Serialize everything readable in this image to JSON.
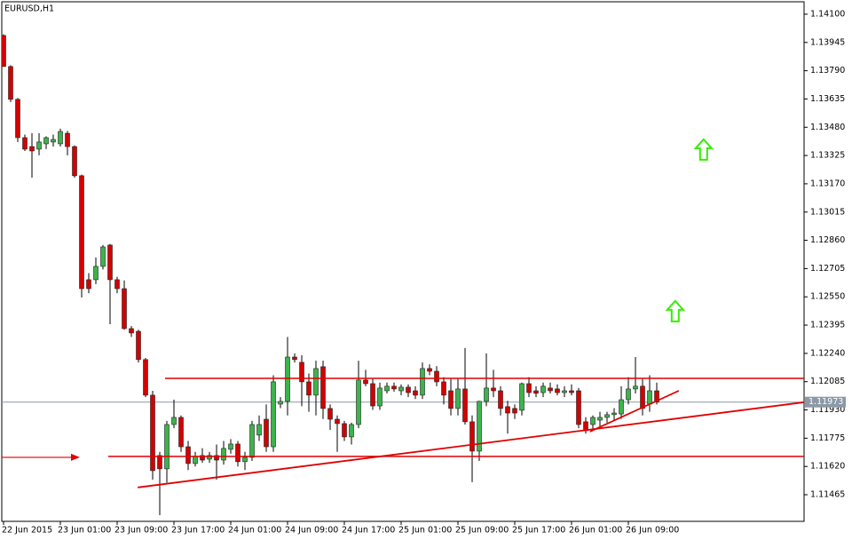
{
  "chart_data": {
    "type": "candlestick",
    "title": "EURUSD,H1",
    "open": [
      1.13983,
      1.13813,
      1.13633,
      1.13423,
      1.13374,
      1.1336,
      1.13389,
      1.13399,
      1.13389,
      1.13447,
      1.13374,
      1.13214,
      1.12644,
      1.12644,
      1.12717,
      1.12834,
      1.12644,
      1.12595,
      1.12376,
      1.12361,
      1.12206,
      1.12011,
      1.1168,
      1.11607,
      1.1185,
      1.11889,
      1.11728,
      1.11636,
      1.1168,
      1.1166,
      1.1168,
      1.11655,
      1.11714,
      1.11743,
      1.11646,
      1.1167,
      1.11792,
      1.11879,
      1.11728,
      1.11962,
      1.11977,
      1.1222,
      1.12191,
      1.12084,
      1.12011,
      1.12167,
      1.11938,
      1.11879,
      1.11855,
      1.11782,
      1.1185,
      1.12094,
      1.12074,
      1.11952,
      1.12035,
      1.1206,
      1.12035,
      1.12055,
      1.12035,
      1.12011,
      1.12157,
      1.12142,
      1.12084,
      1.12035,
      1.11938,
      1.12045,
      1.11865,
      1.11704,
      1.11977,
      1.1205,
      1.12035,
      1.11948,
      1.11938,
      1.11928,
      1.12074,
      1.12035,
      1.12025,
      1.1205,
      1.12045,
      1.12025,
      1.12035,
      1.12035,
      1.11865,
      1.1185,
      1.11874,
      1.11889,
      1.11904,
      1.11908,
      1.11986,
      1.12045,
      1.1206,
      1.11962,
      1.12035
    ],
    "high": [
      1.1399,
      1.1382,
      1.1364,
      1.1344,
      1.13447,
      1.13447,
      1.1343,
      1.1344,
      1.13472,
      1.1346,
      1.1338,
      1.1322,
      1.1268,
      1.12766,
      1.12834,
      1.1284,
      1.1266,
      1.1264,
      1.1239,
      1.1237,
      1.12215,
      1.12035,
      1.117,
      1.1187,
      1.11986,
      1.119,
      1.1176,
      1.117,
      1.1172,
      1.117,
      1.1174,
      1.1176,
      1.1177,
      1.1176,
      1.117,
      1.1187,
      1.119,
      1.1196,
      1.1212,
      1.12,
      1.1233,
      1.1224,
      1.1223,
      1.1213,
      1.122,
      1.122,
      1.1196,
      1.119,
      1.1187,
      1.1186,
      1.122,
      1.1215,
      1.121,
      1.1208,
      1.1208,
      1.1208,
      1.1207,
      1.1207,
      1.1206,
      1.1219,
      1.1218,
      1.1217,
      1.1211,
      1.121,
      1.121,
      1.12269,
      1.119,
      1.1198,
      1.1224,
      1.1215,
      1.1206,
      1.1198,
      1.1196,
      1.1208,
      1.1211,
      1.1206,
      1.1208,
      1.1208,
      1.1207,
      1.1206,
      1.1207,
      1.1205,
      1.1189,
      1.119,
      1.1192,
      1.1192,
      1.1194,
      1.1206,
      1.1211,
      1.1222,
      1.121,
      1.1212,
      1.1208
    ],
    "low": [
      1.13813,
      1.13618,
      1.13399,
      1.1335,
      1.13204,
      1.13326,
      1.1336,
      1.13374,
      1.13374,
      1.13326,
      1.13204,
      1.12547,
      1.1257,
      1.1262,
      1.127,
      1.124,
      1.1257,
      1.1237,
      1.1233,
      1.1219,
      1.12,
      1.11548,
      1.11353,
      1.1153,
      1.1183,
      1.117,
      1.116,
      1.1162,
      1.1164,
      1.1164,
      1.11548,
      1.1163,
      1.1169,
      1.1162,
      1.116,
      1.1165,
      1.1176,
      1.117,
      1.117,
      1.1194,
      1.119,
      1.1219,
      1.1195,
      1.1192,
      1.119,
      1.1188,
      1.1182,
      1.117,
      1.1176,
      1.1174,
      1.1183,
      1.1206,
      1.1193,
      1.1193,
      1.1202,
      1.1203,
      1.1201,
      1.12,
      1.1199,
      1.1199,
      1.1212,
      1.1206,
      1.1196,
      1.119,
      1.119,
      1.1185,
      1.11534,
      1.1165,
      1.1195,
      1.12,
      1.119,
      1.118,
      1.1188,
      1.119,
      1.12,
      1.12,
      1.12,
      1.1202,
      1.1201,
      1.12,
      1.1201,
      1.1183,
      1.118,
      1.1182,
      1.1183,
      1.1186,
      1.1187,
      1.1188,
      1.1196,
      1.1202,
      1.119,
      1.1192,
      1.1196
    ],
    "close": [
      1.13813,
      1.13633,
      1.13423,
      1.1336,
      1.1335,
      1.13399,
      1.13423,
      1.13413,
      1.13457,
      1.13374,
      1.13214,
      1.12595,
      1.12595,
      1.12717,
      1.12824,
      1.12644,
      1.12595,
      1.12376,
      1.12352,
      1.12206,
      1.12011,
      1.11597,
      1.11607,
      1.1185,
      1.11889,
      1.11728,
      1.11636,
      1.11675,
      1.11655,
      1.1168,
      1.11655,
      1.11719,
      1.11743,
      1.11646,
      1.1167,
      1.1185,
      1.1185,
      1.11728,
      1.12084,
      1.11977,
      1.1222,
      1.12206,
      1.12084,
      1.12011,
      1.12157,
      1.11938,
      1.11879,
      1.11855,
      1.11782,
      1.1185,
      1.12094,
      1.12074,
      1.11952,
      1.1205,
      1.1206,
      1.12045,
      1.12055,
      1.12025,
      1.12011,
      1.12157,
      1.12142,
      1.12084,
      1.12011,
      1.11938,
      1.12045,
      1.11865,
      1.11704,
      1.11977,
      1.1205,
      1.12035,
      1.11938,
      1.11913,
      1.11913,
      1.12074,
      1.12025,
      1.12021,
      1.1206,
      1.12035,
      1.12025,
      1.12035,
      1.12025,
      1.1185,
      1.11816,
      1.11889,
      1.11889,
      1.11904,
      1.11913,
      1.11986,
      1.12045,
      1.1206,
      1.11938,
      1.12035,
      1.11973
    ],
    "up_color": "#3cb44b",
    "down_color": "#d40000",
    "wick_color": "#000000",
    "xlim": [
      -0.25,
      112.75
    ],
    "ylim": [
      1.11319,
      1.14168
    ],
    "xticks": [
      {
        "value": 0,
        "label": "22 Jun 2015"
      },
      {
        "value": 8,
        "label": "23 Jun 01:00"
      },
      {
        "value": 16,
        "label": "23 Jun 09:00"
      },
      {
        "value": 24,
        "label": "23 Jun 17:00"
      },
      {
        "value": 32,
        "label": "24 Jun 01:00"
      },
      {
        "value": 40,
        "label": "24 Jun 09:00"
      },
      {
        "value": 48,
        "label": "24 Jun 17:00"
      },
      {
        "value": 56,
        "label": "25 Jun 01:00"
      },
      {
        "value": 64,
        "label": "25 Jun 09:00"
      },
      {
        "value": 72,
        "label": "25 Jun 17:00"
      },
      {
        "value": 80,
        "label": "26 Jun 01:00"
      },
      {
        "value": 88,
        "label": "26 Jun 09:00"
      }
    ],
    "yticks": [
      {
        "value": 1.141,
        "label": "1.14100"
      },
      1.13945,
      {
        "value": 1.1379,
        "label": "1.13790"
      },
      1.13635,
      {
        "value": 1.1348,
        "label": "1.13480"
      },
      1.13325,
      {
        "value": 1.1317,
        "label": "1.13170"
      },
      1.13015,
      {
        "value": 1.1286,
        "label": "1.12860"
      },
      1.12705,
      {
        "value": 1.1255,
        "label": "1.12550"
      },
      1.12395,
      {
        "value": 1.1224,
        "label": "1.12240"
      },
      1.12085,
      {
        "value": 1.1193,
        "label": "1.11930"
      },
      1.11775,
      {
        "value": 1.1162,
        "label": "1.11620"
      },
      1.11465
    ],
    "hlines": [
      {
        "x": [
          22.75,
          112.75
        ],
        "value": 1.12103,
        "color": "#e00000"
      },
      {
        "x": [
          14.75,
          112.75
        ],
        "value": 1.11675,
        "color": "#e00000"
      }
    ],
    "trendlines": [
      {
        "x": [
          18.9,
          112.75
        ],
        "y": [
          1.11505,
          1.11972
        ],
        "color": "#e00000"
      },
      {
        "x": [
          82.6,
          95.1
        ],
        "y": [
          1.11811,
          1.12035
        ],
        "color": "#e00000"
      }
    ],
    "arrow_lines": [
      {
        "x": [
          -0.25,
          10.75
        ],
        "y": [
          1.1167,
          1.1167
        ],
        "color": "#e00000"
      }
    ],
    "up_arrows": [
      {
        "x": 98.6,
        "y": 1.1336,
        "color": "#33ee00"
      },
      {
        "x": 94.6,
        "y": 1.12474,
        "color": "#33ee00"
      }
    ],
    "current_price": {
      "value": 1.11973,
      "color": "#8c99a6"
    }
  }
}
